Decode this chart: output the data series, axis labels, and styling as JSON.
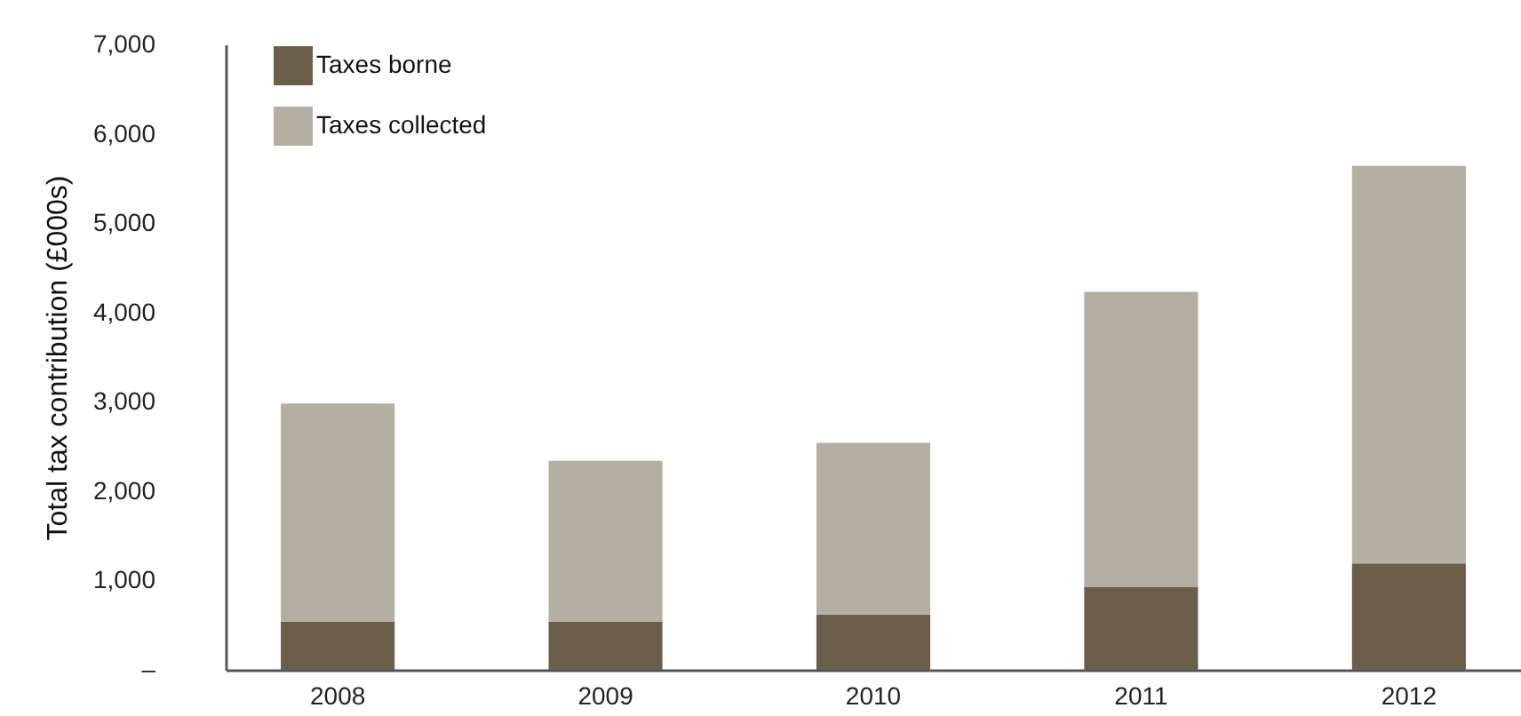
{
  "chart_data": {
    "type": "bar",
    "stacked": true,
    "ylabel": "Total tax contribution (£000s)",
    "categories": [
      "2008",
      "2009",
      "2010",
      "2011",
      "2012"
    ],
    "series": [
      {
        "name": "Taxes borne",
        "color": "#6a5e4b",
        "values": [
          540,
          540,
          620,
          930,
          1190
        ]
      },
      {
        "name": "Taxes collected",
        "color": "#b3afa3",
        "values": [
          2440,
          1800,
          1920,
          3300,
          4450
        ]
      }
    ],
    "ylim": [
      0,
      7000
    ],
    "yticks": [
      {
        "value": 0,
        "label": "–"
      },
      {
        "value": 1000,
        "label": "1,000"
      },
      {
        "value": 2000,
        "label": "2,000"
      },
      {
        "value": 3000,
        "label": "3,000"
      },
      {
        "value": 4000,
        "label": "4,000"
      },
      {
        "value": 5000,
        "label": "5,000"
      },
      {
        "value": 6000,
        "label": "6,000"
      },
      {
        "value": 7000,
        "label": "7,000"
      }
    ],
    "grid": false,
    "legend": "top left"
  }
}
